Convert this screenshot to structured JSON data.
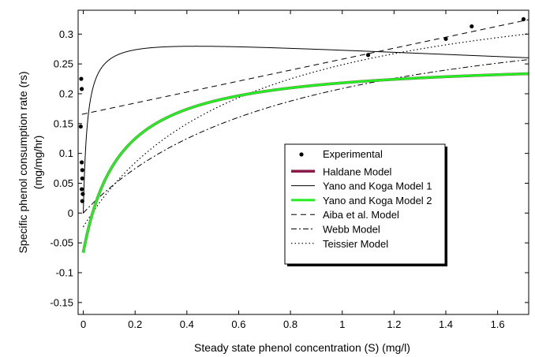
{
  "chart_data": {
    "type": "line",
    "title": "",
    "xlabel": "Steady state phenol concentration (S) (mg/l)",
    "ylabel_line1": "Specific phenol consumption rate (rs)",
    "ylabel_line2": "(mg/mg/hr)",
    "xlim": [
      -0.02,
      1.72
    ],
    "ylim": [
      -0.17,
      0.34
    ],
    "xticks": [
      0,
      0.2,
      0.4,
      0.6,
      0.8,
      1,
      1.2,
      1.4,
      1.6
    ],
    "xtick_labels": [
      "0",
      "0.2",
      "0.4",
      "0.6",
      "0.8",
      "1",
      "1.2",
      "1.4",
      "1.6"
    ],
    "yticks": [
      -0.15,
      -0.1,
      -0.05,
      0,
      0.05,
      0.1,
      0.15,
      0.2,
      0.25,
      0.3
    ],
    "ytick_labels": [
      "-0.15",
      "-0.1",
      "-0.05",
      "0",
      "0.05",
      "0.1",
      "0.15",
      "0.2",
      "0.25",
      "0.3"
    ],
    "grid": false,
    "legend_position": "center-right",
    "experimental": {
      "name": "Experimental",
      "color": "#000000",
      "points": [
        {
          "x": -0.008,
          "y": 0.225
        },
        {
          "x": -0.006,
          "y": 0.208
        },
        {
          "x": -0.01,
          "y": 0.145
        },
        {
          "x": -0.006,
          "y": 0.085
        },
        {
          "x": -0.004,
          "y": 0.072
        },
        {
          "x": -0.004,
          "y": 0.058
        },
        {
          "x": -0.006,
          "y": 0.04
        },
        {
          "x": -0.002,
          "y": 0.032
        },
        {
          "x": -0.004,
          "y": 0.02
        },
        {
          "x": 1.1,
          "y": 0.265
        },
        {
          "x": 1.4,
          "y": 0.292
        },
        {
          "x": 1.5,
          "y": 0.313
        },
        {
          "x": 1.7,
          "y": 0.325
        }
      ]
    },
    "series": [
      {
        "name": "Haldane Model",
        "color": "#8b1a4a",
        "width": 3.5,
        "dash": "",
        "model": "monod",
        "params": {
          "mu": 0.324,
          "k": 0.14,
          "offset": 0.066
        }
      },
      {
        "name": "Yano and Koga Model 1",
        "color": "#000000",
        "width": 1,
        "dash": "",
        "model": "yano1",
        "params": {
          "mu": 0.3,
          "k": 0.0159,
          "ki": 12.0
        }
      },
      {
        "name": "Yano and Koga Model 2",
        "color": "#22ee22",
        "width": 3,
        "dash": "",
        "model": "monod",
        "params": {
          "mu": 0.324,
          "k": 0.14,
          "offset": 0.066
        }
      },
      {
        "name": "Aiba et al. Model",
        "color": "#000000",
        "width": 1,
        "dash": "7,5",
        "model": "linear",
        "params": {
          "m": 0.092,
          "c": 0.166
        }
      },
      {
        "name": "Webb Model",
        "color": "#000000",
        "width": 1,
        "dash": "7,3,2,3",
        "model": "monod",
        "params": {
          "mu": 0.38,
          "k": 0.82,
          "offset": 0.0
        }
      },
      {
        "name": "Teissier Model",
        "color": "#000000",
        "width": 1.2,
        "dash": "1.5,3",
        "model": "monod",
        "params": {
          "mu": 0.44,
          "k": 0.62,
          "offset": 0.023
        }
      }
    ]
  }
}
